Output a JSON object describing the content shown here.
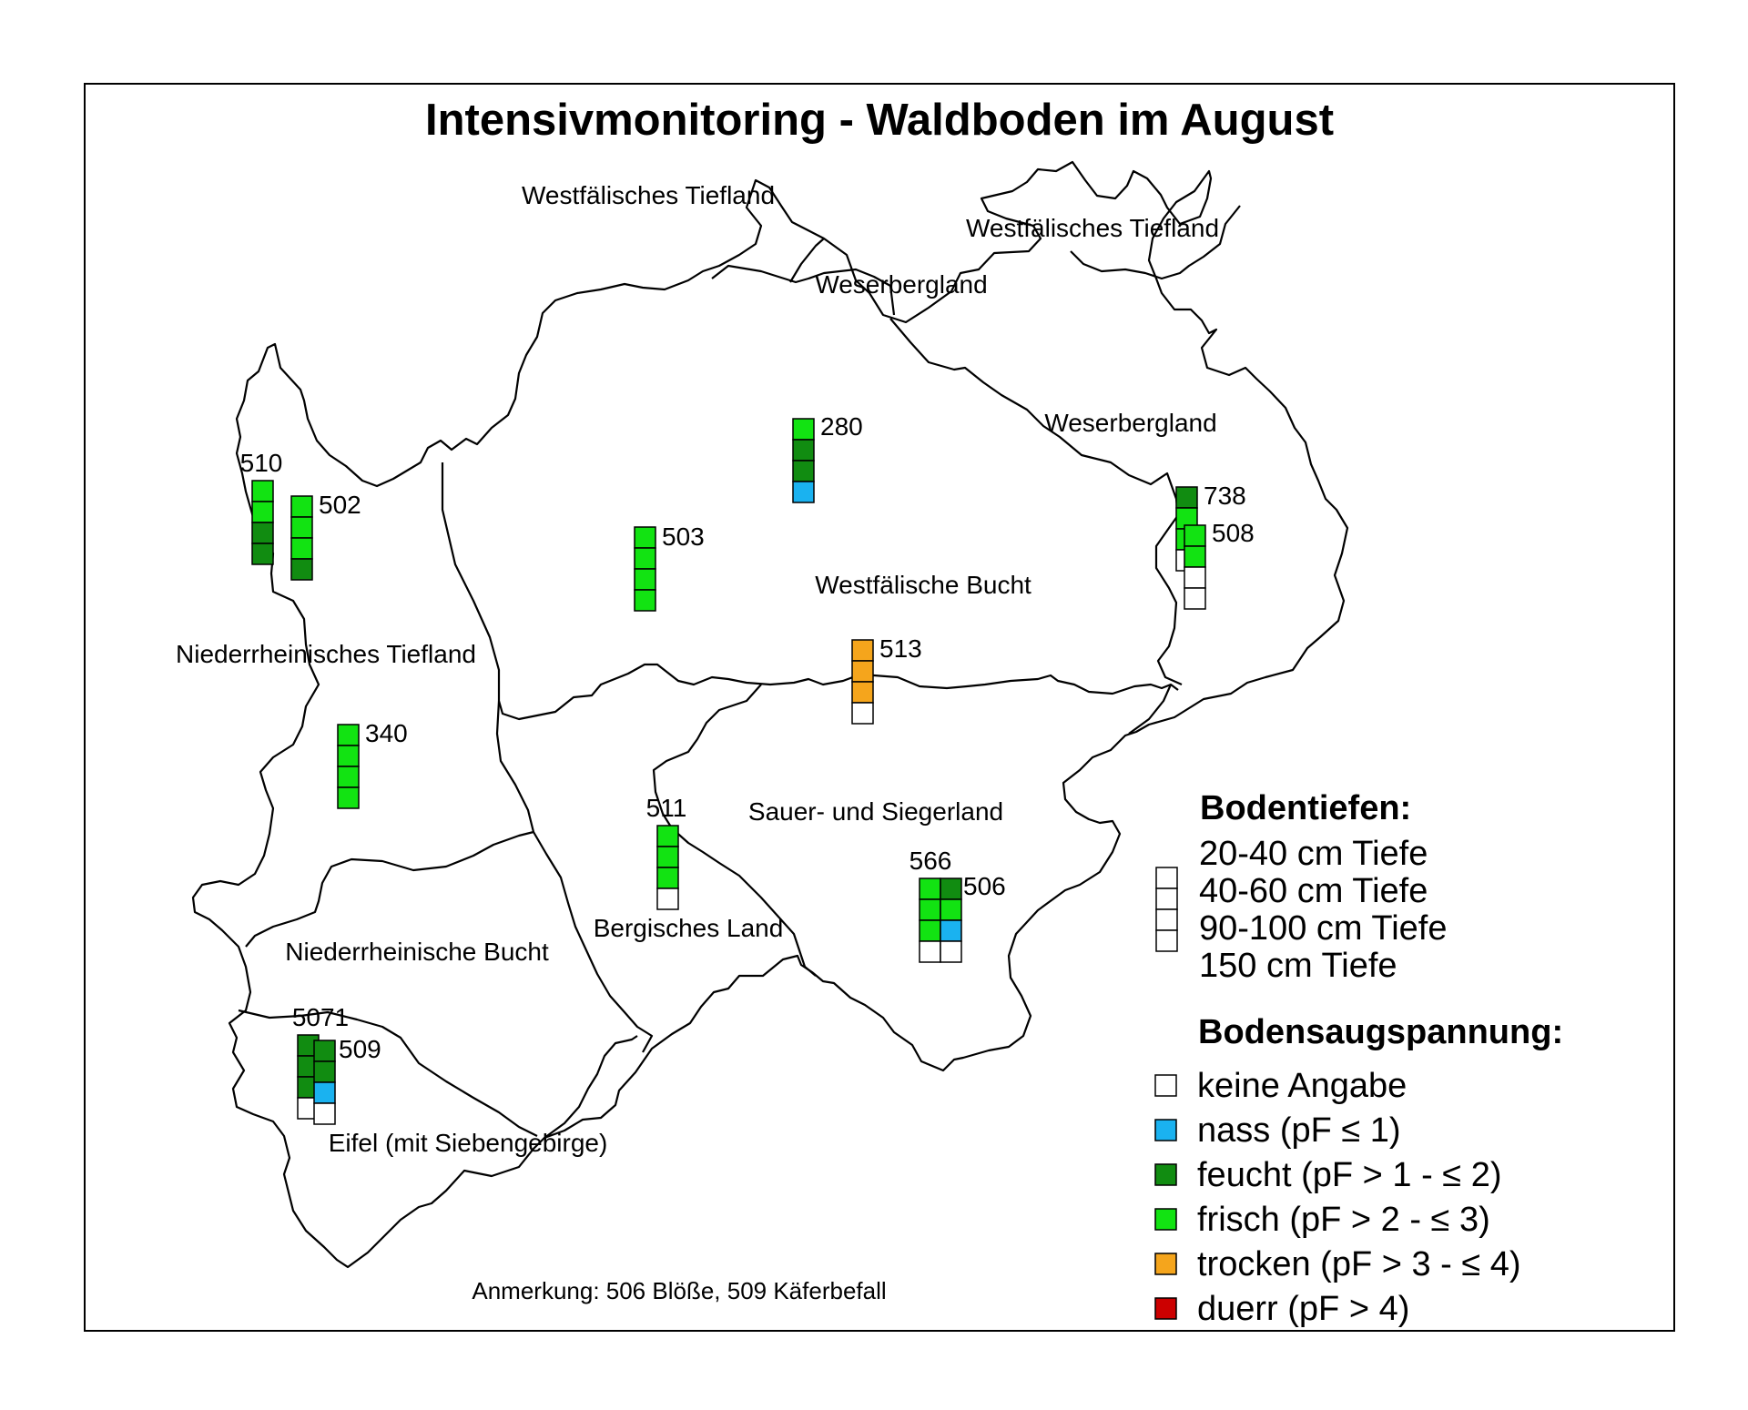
{
  "title": "Intensivmonitoring - Waldboden im August",
  "note": "Anmerkung: 506 Blöße, 509 Käferbefall",
  "colors": {
    "keine": "#ffffff",
    "nass": "#1ab2f0",
    "feucht": "#118c11",
    "frisch": "#12e312",
    "trocken": "#f5a51c",
    "duerr": "#cc0000"
  },
  "regions": [
    "Westfälisches Tiefland",
    "Westfälisches Tiefland",
    "Weserbergland",
    "Weserbergland",
    "Westfälische Bucht",
    "Niederrheinisches Tiefland",
    "Sauer- und Siegerland",
    "Bergisches Land",
    "Niederrheinische Bucht",
    "Eifel (mit Siebengebirge)"
  ],
  "stations": [
    {
      "id": "280",
      "cells": [
        "frisch",
        "feucht",
        "feucht",
        "nass"
      ]
    },
    {
      "id": "510",
      "cells": [
        "frisch",
        "frisch",
        "feucht",
        "feucht"
      ]
    },
    {
      "id": "502",
      "cells": [
        "frisch",
        "frisch",
        "frisch",
        "feucht"
      ]
    },
    {
      "id": "503",
      "cells": [
        "frisch",
        "frisch",
        "frisch",
        "frisch"
      ]
    },
    {
      "id": "738",
      "cells": [
        "feucht",
        "frisch",
        "frisch",
        "keine"
      ]
    },
    {
      "id": "508",
      "cells": [
        "frisch",
        "frisch",
        "keine",
        "keine"
      ]
    },
    {
      "id": "513",
      "cells": [
        "trocken",
        "trocken",
        "trocken",
        "keine"
      ]
    },
    {
      "id": "340",
      "cells": [
        "frisch",
        "frisch",
        "frisch",
        "frisch"
      ]
    },
    {
      "id": "511",
      "cells": [
        "frisch",
        "frisch",
        "frisch",
        "keine"
      ]
    },
    {
      "id": "566",
      "cells": [
        "frisch",
        "frisch",
        "frisch",
        "keine"
      ]
    },
    {
      "id": "506",
      "cells": [
        "feucht",
        "frisch",
        "nass",
        "keine"
      ]
    },
    {
      "id": "5071",
      "cells": [
        "feucht",
        "feucht",
        "feucht",
        "keine"
      ]
    },
    {
      "id": "509",
      "cells": [
        "feucht",
        "feucht",
        "nass",
        "keine"
      ]
    }
  ],
  "legend": {
    "depth_title": "Bodentiefen:",
    "depths": [
      "20-40 cm Tiefe",
      "40-60 cm Tiefe",
      "90-100 cm Tiefe",
      "150 cm Tiefe"
    ],
    "tension_title": "Bodensaugspannung:",
    "classes": [
      {
        "key": "keine",
        "label": "keine Angabe"
      },
      {
        "key": "nass",
        "label": "nass (pF ≤ 1)"
      },
      {
        "key": "feucht",
        "label": "feucht (pF > 1 - ≤ 2)"
      },
      {
        "key": "frisch",
        "label": "frisch (pF > 2 - ≤ 3)"
      },
      {
        "key": "trocken",
        "label": "trocken (pF > 3 - ≤ 4)"
      },
      {
        "key": "duerr",
        "label": "duerr (pF > 4)"
      }
    ]
  }
}
